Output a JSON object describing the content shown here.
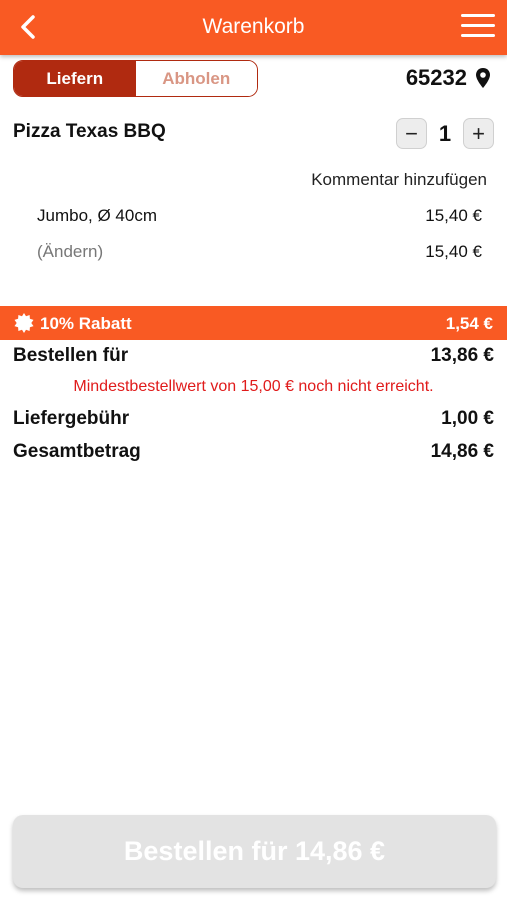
{
  "header": {
    "title": "Warenkorb",
    "back_icon": "chevron-left-icon",
    "menu_icon": "hamburger-menu-icon"
  },
  "delivery_toggle": {
    "options": [
      "Liefern",
      "Abholen"
    ],
    "selected": "Liefern"
  },
  "location": {
    "postcode": "65232",
    "icon": "map-pin-icon"
  },
  "cart_item": {
    "name": "Pizza Texas BBQ",
    "quantity": "1",
    "decrease_symbol": "−",
    "increase_symbol": "+",
    "comment_link": "Kommentar hinzufügen",
    "variant": "Jumbo, Ø 40cm",
    "variant_price": "15,40 €",
    "change_link": "(Ändern)",
    "item_total": "15,40 €"
  },
  "discount": {
    "label": "10% Rabatt",
    "amount": "1,54 €"
  },
  "summary": {
    "order_for_label": "Bestellen für",
    "order_for_value": "13,86 €",
    "min_order_warning": "Mindestbestellwert von 15,00 € noch nicht erreicht.",
    "delivery_fee_label": "Liefergebühr",
    "delivery_fee_value": "1,00 €",
    "total_label": "Gesamtbetrag",
    "total_value": "14,86 €"
  },
  "order_button": {
    "label": "Bestellen für 14,86 €",
    "enabled": false
  },
  "colors": {
    "brand": "#f95a23",
    "toggle_active": "#b02a10",
    "warning": "#e01b1b",
    "disabled_button": "#e3e3e3"
  }
}
